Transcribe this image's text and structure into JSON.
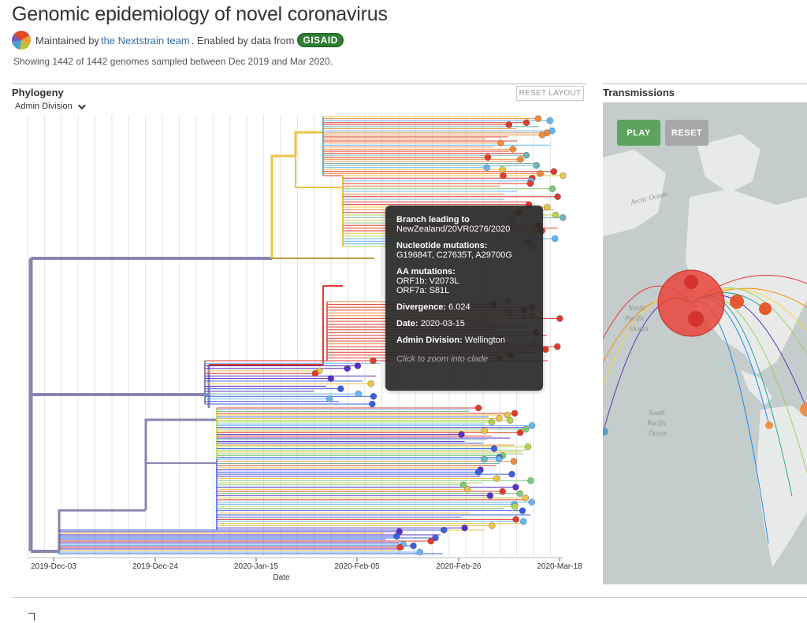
{
  "header": {
    "title": "Genomic epidemiology of novel coronavirus",
    "maintained_prefix": "Maintained by",
    "team_link": "the Nextstrain team",
    "enabled_text": ". Enabled by data from",
    "gisaid_badge": "GISAID",
    "showing_text": "Showing 1442 of 1442 genomes sampled between Dec 2019 and Mar 2020."
  },
  "phylogeny": {
    "title": "Phylogeny",
    "color_by": "Admin Division",
    "reset_layout_label": "RESET LAYOUT",
    "x_axis_label": "Date",
    "x_ticks": [
      "2019-Dec-03",
      "2019-Dec-24",
      "2020-Jan-15",
      "2020-Feb-05",
      "2020-Feb-26",
      "2020-Mar-18"
    ]
  },
  "tooltip": {
    "branch_label": "Branch leading to",
    "branch_value": "NewZealand/20VR0276/2020",
    "nuc_label": "Nucleotide mutations:",
    "nuc_value": "G19684T, C27635T, A29700G",
    "aa_label": "AA mutations:",
    "aa_line1": "ORF1b:  V2073L",
    "aa_line2": "ORF7a:  S81L",
    "divergence_label": "Divergence:",
    "divergence_value": "6.024",
    "date_label": "Date:",
    "date_value": "2020-03-15",
    "admin_label": "Admin Division:",
    "admin_value": "Wellington",
    "hint": "Click to zoom into clade"
  },
  "transmissions": {
    "title": "Transmissions",
    "play_label": "PLAY",
    "reset_label": "RESET",
    "map_labels": {
      "arctic": "Arctic Ocean",
      "north_pacific_1": "North",
      "north_pacific_2": "Pacific",
      "north_pacific_3": "Ocean",
      "south_pacific_1": "South",
      "south_pacific_2": "Pacific",
      "south_pacific_3": "Ocean"
    }
  },
  "colors": {
    "backbone": "#8a84b0",
    "red": "#e23a2b",
    "orange": "#ee8a3a",
    "yellow": "#e9c445",
    "lime": "#b6d24f",
    "green": "#7fc97f",
    "teal": "#6fb3b3",
    "blue": "#3b5fe0",
    "violet": "#5a2dc8",
    "sky": "#64b5f6"
  }
}
